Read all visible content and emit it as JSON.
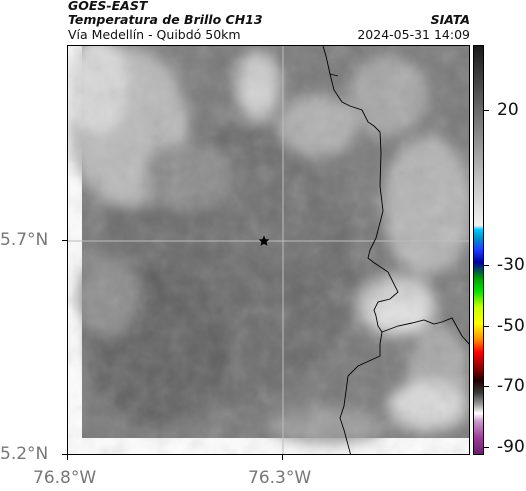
{
  "header": {
    "satellite": "GOES-EAST",
    "product": "Temperatura de Brillo CH13",
    "location": "Vía Medellín - Quibdó 50km",
    "organization": "SIATA",
    "datetime": "2024-05-31 14:09"
  },
  "map": {
    "lat_labels": [
      "5.7°N",
      "5.2°N"
    ],
    "lon_labels": [
      "76.8°W",
      "76.3°W"
    ],
    "marker_icon": "star-icon",
    "colors": {
      "cloud_dark": "#6e6e6e",
      "cloud_mid": "#8a8a8a",
      "cloud_bright": "#e6e6e6",
      "boundary": "#000000",
      "gridline": "#bdbdbd"
    }
  },
  "colorbar": {
    "tick_labels": [
      "20",
      "-30",
      "-50",
      "-70",
      "-90"
    ]
  }
}
